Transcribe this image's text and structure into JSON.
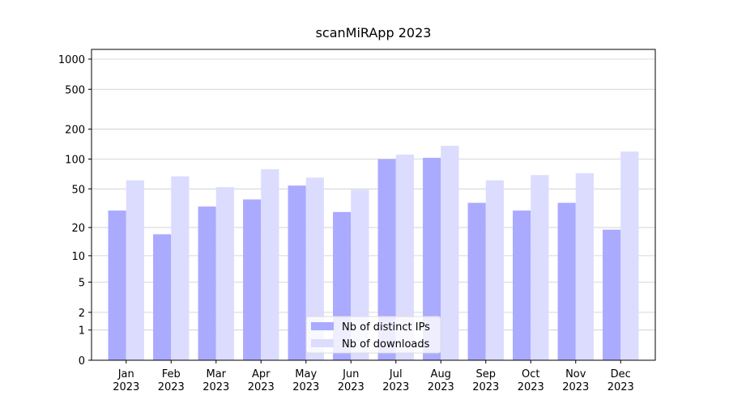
{
  "chart_data": {
    "type": "bar",
    "title": "scanMiRApp 2023",
    "categories": [
      "Jan\n2023",
      "Feb\n2023",
      "Mar\n2023",
      "Apr\n2023",
      "May\n2023",
      "Jun\n2023",
      "Jul\n2023",
      "Aug\n2023",
      "Sep\n2023",
      "Oct\n2023",
      "Nov\n2023",
      "Dec\n2023"
    ],
    "series": [
      {
        "name": "Nb of distinct IPs",
        "color": "#aaaaff",
        "values": [
          30,
          17,
          33,
          39,
          54,
          29,
          100,
          103,
          36,
          30,
          36,
          19
        ]
      },
      {
        "name": "Nb of downloads",
        "color": "#dcdcff",
        "values": [
          61,
          67,
          52,
          79,
          65,
          49,
          111,
          136,
          61,
          69,
          72,
          119
        ]
      }
    ],
    "yscale": "log1p",
    "ylim": [
      0,
      1250
    ],
    "yticks": [
      0,
      1,
      2,
      5,
      10,
      20,
      50,
      100,
      200,
      500,
      1000
    ],
    "grid": true,
    "legend": "lower center"
  }
}
